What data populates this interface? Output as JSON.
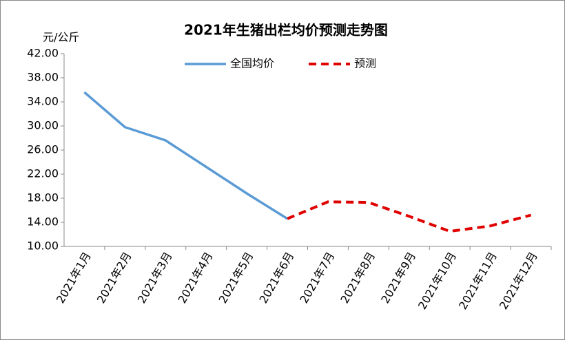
{
  "chart_data": {
    "type": "line",
    "title": "2021年生猪出栏均价预测走势图",
    "y_label": "元/公斤",
    "categories": [
      "2021年1月",
      "2021年2月",
      "2021年3月",
      "2021年4月",
      "2021年5月",
      "2021年6月",
      "2021年7月",
      "2021年8月",
      "2021年9月",
      "2021年10月",
      "2021年11月",
      "2021年12月"
    ],
    "series": [
      {
        "name": "全国均价",
        "color": "#5b9bd5",
        "dash": false,
        "values": [
          35.6,
          29.8,
          27.6,
          23.2,
          18.8,
          14.6,
          null,
          null,
          null,
          null,
          null,
          null
        ]
      },
      {
        "name": "预测",
        "color": "#e00000",
        "dash": true,
        "values": [
          null,
          null,
          null,
          null,
          null,
          14.6,
          17.4,
          17.3,
          15.0,
          12.5,
          13.4,
          15.2
        ]
      }
    ],
    "ylim": [
      10,
      42
    ],
    "yticks": [
      {
        "value": 10,
        "label": "10.00"
      },
      {
        "value": 14,
        "label": "14.00"
      },
      {
        "value": 18,
        "label": "18.00"
      },
      {
        "value": 22,
        "label": "22.00"
      },
      {
        "value": 26,
        "label": "26.00"
      },
      {
        "value": 30,
        "label": "30.00"
      },
      {
        "value": 34,
        "label": "34.00"
      },
      {
        "value": 38,
        "label": "38.00"
      },
      {
        "value": 42,
        "label": "42.00"
      }
    ],
    "legend": "top"
  }
}
